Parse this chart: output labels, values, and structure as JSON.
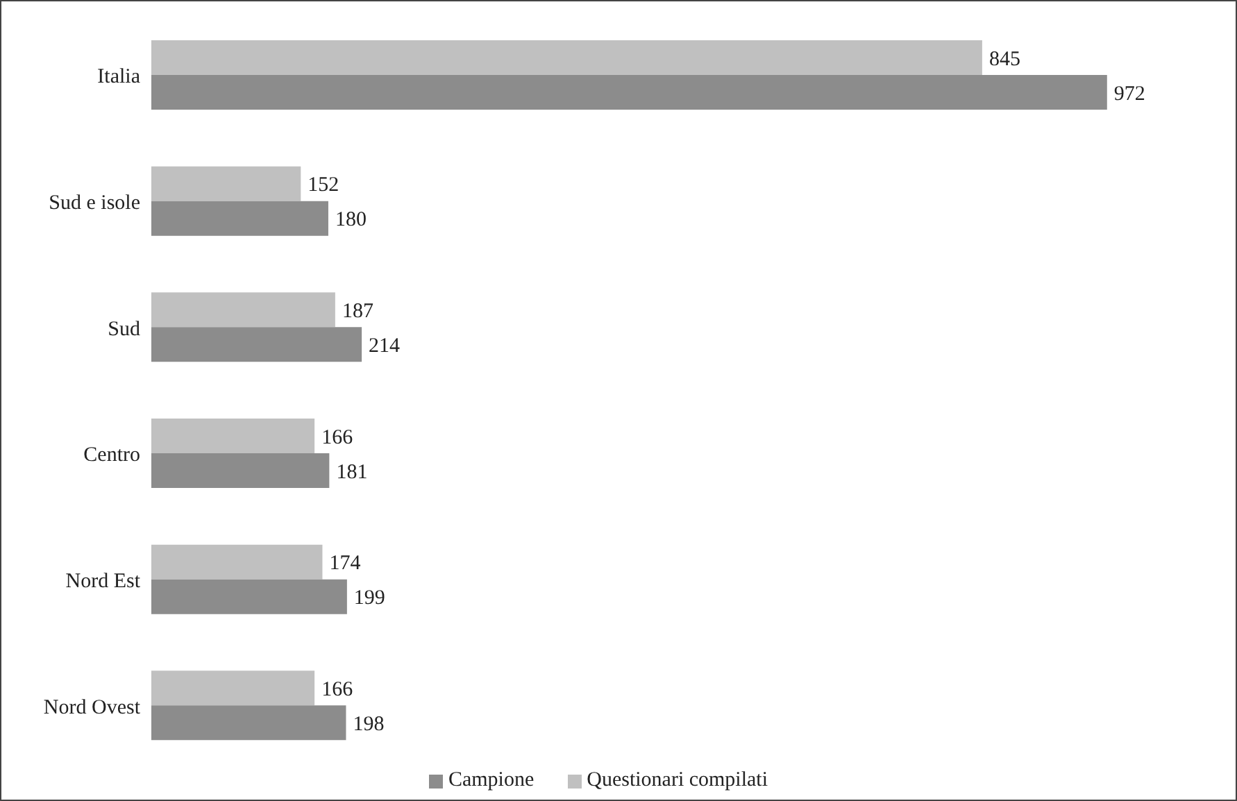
{
  "chart_data": {
    "type": "bar",
    "orientation": "horizontal",
    "categories": [
      "Italia",
      "Sud e isole",
      "Sud",
      "Centro",
      "Nord Est",
      "Nord Ovest"
    ],
    "series": [
      {
        "name": "Questionari compilati",
        "color": "#c0c0c0",
        "values": [
          845,
          152,
          187,
          166,
          174,
          166
        ]
      },
      {
        "name": "Campione",
        "color": "#8c8c8c",
        "values": [
          972,
          180,
          214,
          181,
          199,
          198
        ]
      }
    ],
    "data_labels": true,
    "grid": false,
    "legend": "bottom"
  }
}
